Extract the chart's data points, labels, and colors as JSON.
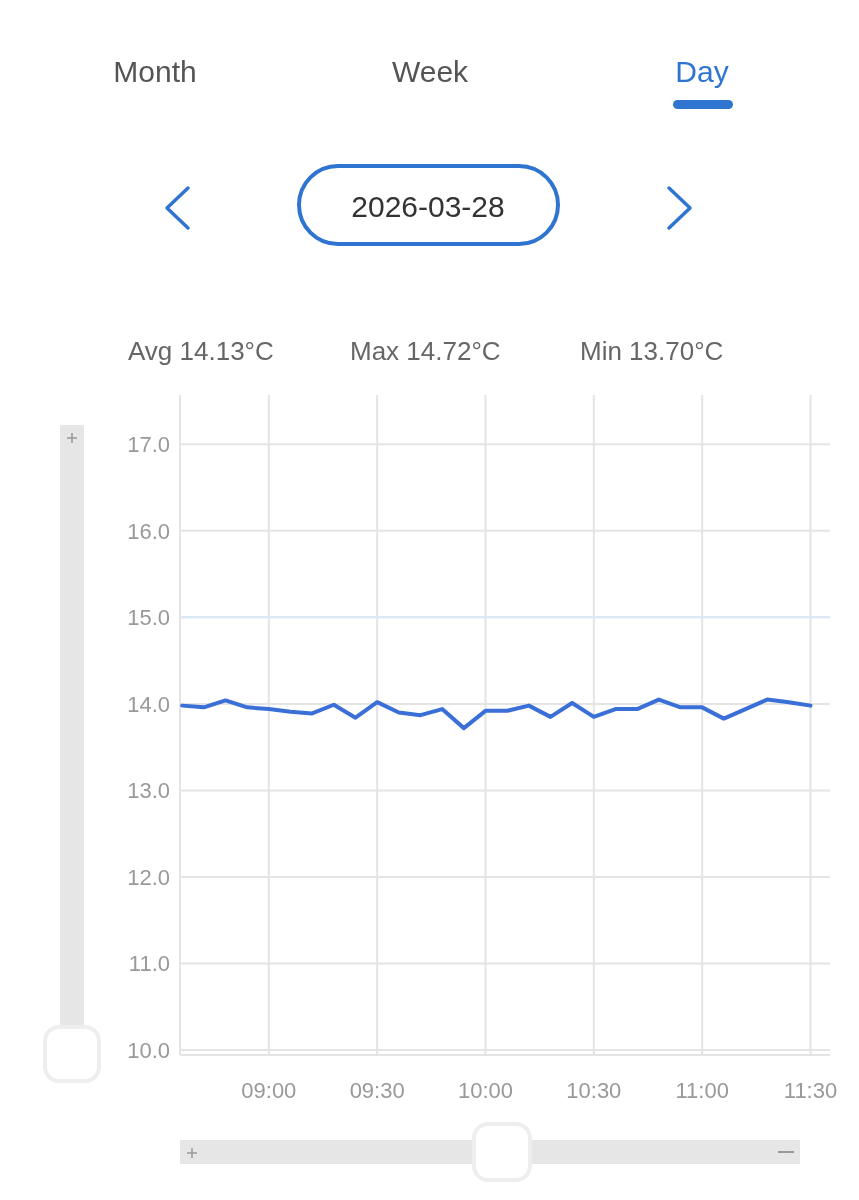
{
  "chart_data": {
    "type": "line",
    "annotations": [
      "Month",
      "Week",
      "Day",
      "2026-03-28",
      "Avg 14.13°C",
      "Max 14.72°C",
      "Min 13.70°C"
    ],
    "x": [
      8.6,
      8.7,
      8.8,
      8.9,
      9.0,
      9.1,
      9.2,
      9.3,
      9.4,
      9.5,
      9.6,
      9.7,
      9.8,
      9.9,
      10.0,
      10.1,
      10.2,
      10.3,
      10.4,
      10.5,
      10.6,
      10.7,
      10.8,
      10.9,
      11.0,
      11.1,
      11.2,
      11.3,
      11.4,
      11.5
    ],
    "series": [
      {
        "color": "#3a6fd8",
        "values": [
          13.98,
          13.96,
          14.04,
          13.96,
          13.94,
          13.91,
          13.89,
          13.99,
          13.84,
          14.02,
          13.9,
          13.87,
          13.94,
          13.72,
          13.92,
          13.92,
          13.98,
          13.85,
          14.01,
          13.85,
          13.94,
          13.94,
          14.05,
          13.96,
          13.96,
          13.83,
          13.94,
          14.05,
          14.02,
          13.98
        ]
      }
    ],
    "xlim": [
      8.59,
      11.59
    ],
    "xticks": [
      {
        "value": 9,
        "label": "09:00"
      },
      {
        "value": 9.5,
        "label": "09:30"
      },
      {
        "value": 10,
        "label": "10:00"
      },
      {
        "value": 10.5,
        "label": "10:30"
      },
      {
        "value": 11,
        "label": "11:00"
      },
      {
        "value": 11.5,
        "label": "11:30"
      }
    ],
    "ylim": [
      10,
      17.57
    ],
    "yticks": [
      {
        "value": 10,
        "label": "10.0"
      },
      {
        "value": 11,
        "label": "11.0"
      },
      {
        "value": 12,
        "label": "12.0"
      },
      {
        "value": 13,
        "label": "13.0"
      },
      {
        "value": 14,
        "label": "14.0"
      },
      {
        "value": 15,
        "label": "15.0"
      },
      {
        "value": 16,
        "label": "16.0"
      },
      {
        "value": 17,
        "label": "17.0"
      }
    ],
    "ref_lines": [
      {
        "axis": "y",
        "value": 15,
        "color": "#dbe7f8"
      }
    ],
    "grid": true,
    "marker": "none",
    "line_style": "solid"
  }
}
